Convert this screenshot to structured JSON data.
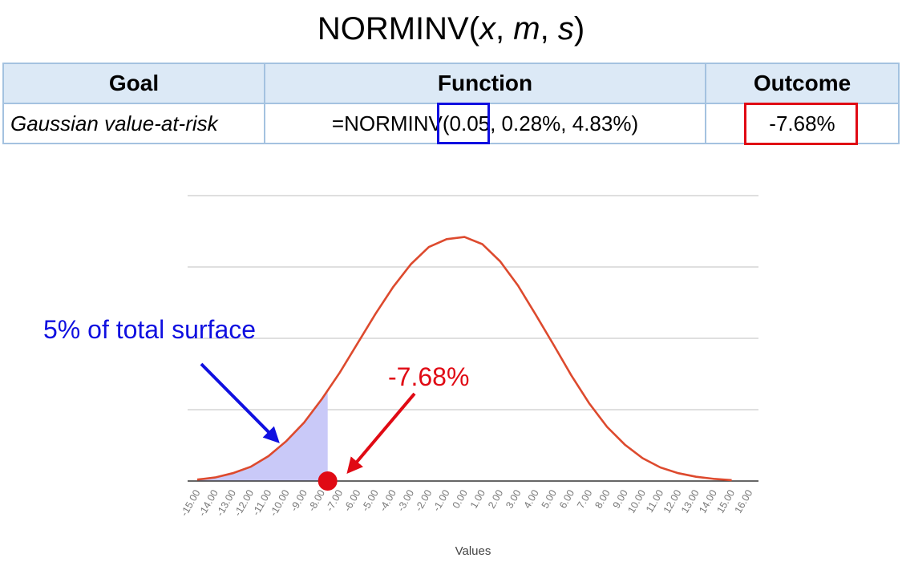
{
  "title": {
    "func": "NORMINV(",
    "x": "x",
    "sep1": ", ",
    "m": "m",
    "sep2": ", ",
    "s": "s",
    "close": ")"
  },
  "table": {
    "headers": [
      "Goal",
      "Function",
      "Outcome"
    ],
    "row": {
      "goal": "Gaussian value-at-risk",
      "function": "=NORMINV(0.05, 0.28%, 4.83%)",
      "outcome": "-7.68%"
    }
  },
  "colors": {
    "curve": "#dd4a2e",
    "fill": "#c9c9f8",
    "blue": "#1010e0",
    "red": "#e00a14",
    "grid": "#cccccc"
  },
  "chart_data": {
    "type": "area",
    "x": [
      -15,
      -14,
      -13,
      -12,
      -11,
      -10,
      -9,
      -8,
      -7,
      -6,
      -5,
      -4,
      -3,
      -2,
      -1,
      0,
      1,
      2,
      3,
      4,
      5,
      6,
      7,
      8,
      9,
      10,
      11,
      12,
      13,
      14,
      15
    ],
    "y": [
      0.1,
      0.25,
      0.55,
      1.0,
      1.75,
      2.8,
      4.1,
      5.75,
      7.6,
      9.65,
      11.7,
      13.6,
      15.2,
      16.4,
      16.95,
      17.1,
      16.6,
      15.4,
      13.7,
      11.65,
      9.55,
      7.4,
      5.45,
      3.8,
      2.55,
      1.6,
      0.95,
      0.55,
      0.3,
      0.15,
      0.06
    ],
    "x_ticks": [
      "-15.00",
      "-14.00",
      "-13.00",
      "-12.00",
      "-11.00",
      "-10.00",
      "-9.00",
      "-8.00",
      "-7.00",
      "-6.00",
      "-5.00",
      "-4.00",
      "-3.00",
      "-2.00",
      "-1.00",
      "0.00",
      "1.00",
      "2.00",
      "3.00",
      "4.00",
      "5.00",
      "6.00",
      "7.00",
      "8.00",
      "9.00",
      "10.00",
      "11.00",
      "12.00",
      "13.00",
      "14.00",
      "15.00",
      "16.00"
    ],
    "xlabel": "Values",
    "ylim": [
      0,
      20
    ],
    "grid": true,
    "shaded_until_x": -7.68,
    "marker_x": -7.68,
    "annotations": {
      "surface": "5% of total surface",
      "value": "-7.68%"
    }
  }
}
